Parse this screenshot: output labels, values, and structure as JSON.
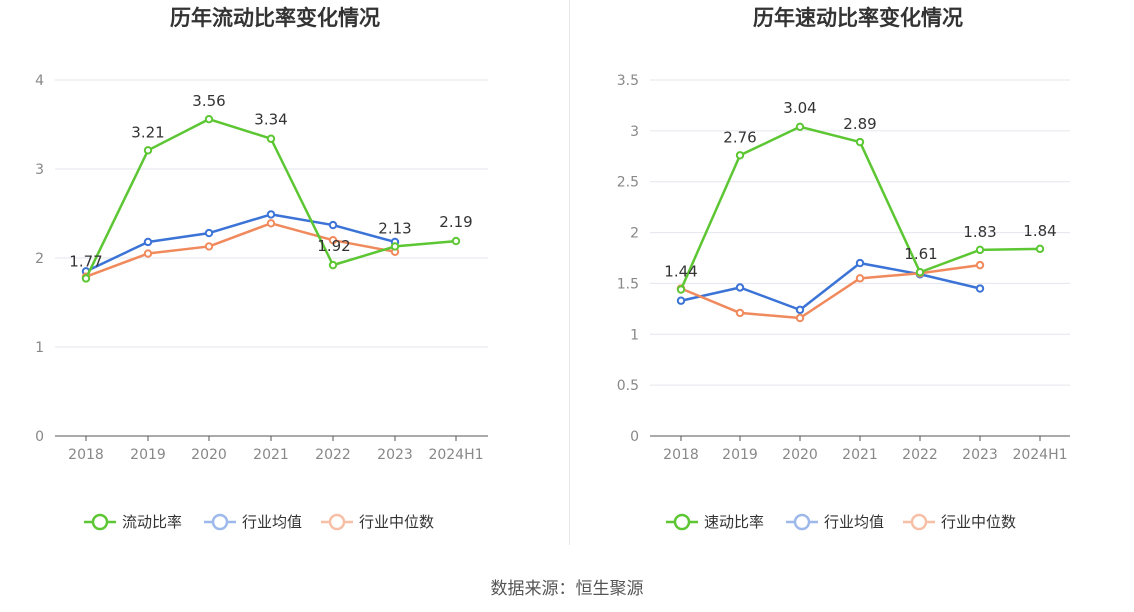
{
  "footer": {
    "source": "数据来源：恒生聚源"
  },
  "chart_data": [
    {
      "type": "line",
      "title": "历年流动比率变化情况",
      "categories": [
        "2018",
        "2019",
        "2020",
        "2021",
        "2022",
        "2023",
        "2024H1"
      ],
      "ylim": [
        0,
        4
      ],
      "yticks": [
        "0",
        "1",
        "2",
        "3",
        "4"
      ],
      "grid": true,
      "legend": "bottom",
      "series": [
        {
          "name": "流动比率",
          "color": "#5cc633",
          "values": [
            1.77,
            3.21,
            3.56,
            3.34,
            1.92,
            2.13,
            2.19
          ],
          "labels": [
            "1.77",
            "3.21",
            "3.56",
            "3.34",
            "1.92",
            "2.13",
            "2.19"
          ]
        },
        {
          "name": "行业均值",
          "color": "#3b73d6",
          "values": [
            1.85,
            2.18,
            2.28,
            2.49,
            2.37,
            2.18,
            null
          ]
        },
        {
          "name": "行业中位数",
          "color": "#f08a5d",
          "values": [
            1.79,
            2.05,
            2.13,
            2.39,
            2.2,
            2.07,
            null
          ]
        }
      ]
    },
    {
      "type": "line",
      "title": "历年速动比率变化情况",
      "categories": [
        "2018",
        "2019",
        "2020",
        "2021",
        "2022",
        "2023",
        "2024H1"
      ],
      "ylim": [
        0,
        3.5
      ],
      "yticks": [
        "0",
        "0.5",
        "1",
        "1.5",
        "2",
        "2.5",
        "3",
        "3.5"
      ],
      "grid": true,
      "legend": "bottom",
      "series": [
        {
          "name": "速动比率",
          "color": "#5cc633",
          "values": [
            1.44,
            2.76,
            3.04,
            2.89,
            1.61,
            1.83,
            1.84
          ],
          "labels": [
            "1.44",
            "2.76",
            "3.04",
            "2.89",
            "1.61",
            "1.83",
            "1.84"
          ]
        },
        {
          "name": "行业均值",
          "color": "#3b73d6",
          "values": [
            1.33,
            1.46,
            1.24,
            1.7,
            1.59,
            1.45,
            null
          ]
        },
        {
          "name": "行业中位数",
          "color": "#f08a5d",
          "values": [
            1.45,
            1.21,
            1.16,
            1.55,
            1.6,
            1.68,
            null
          ]
        }
      ]
    }
  ]
}
